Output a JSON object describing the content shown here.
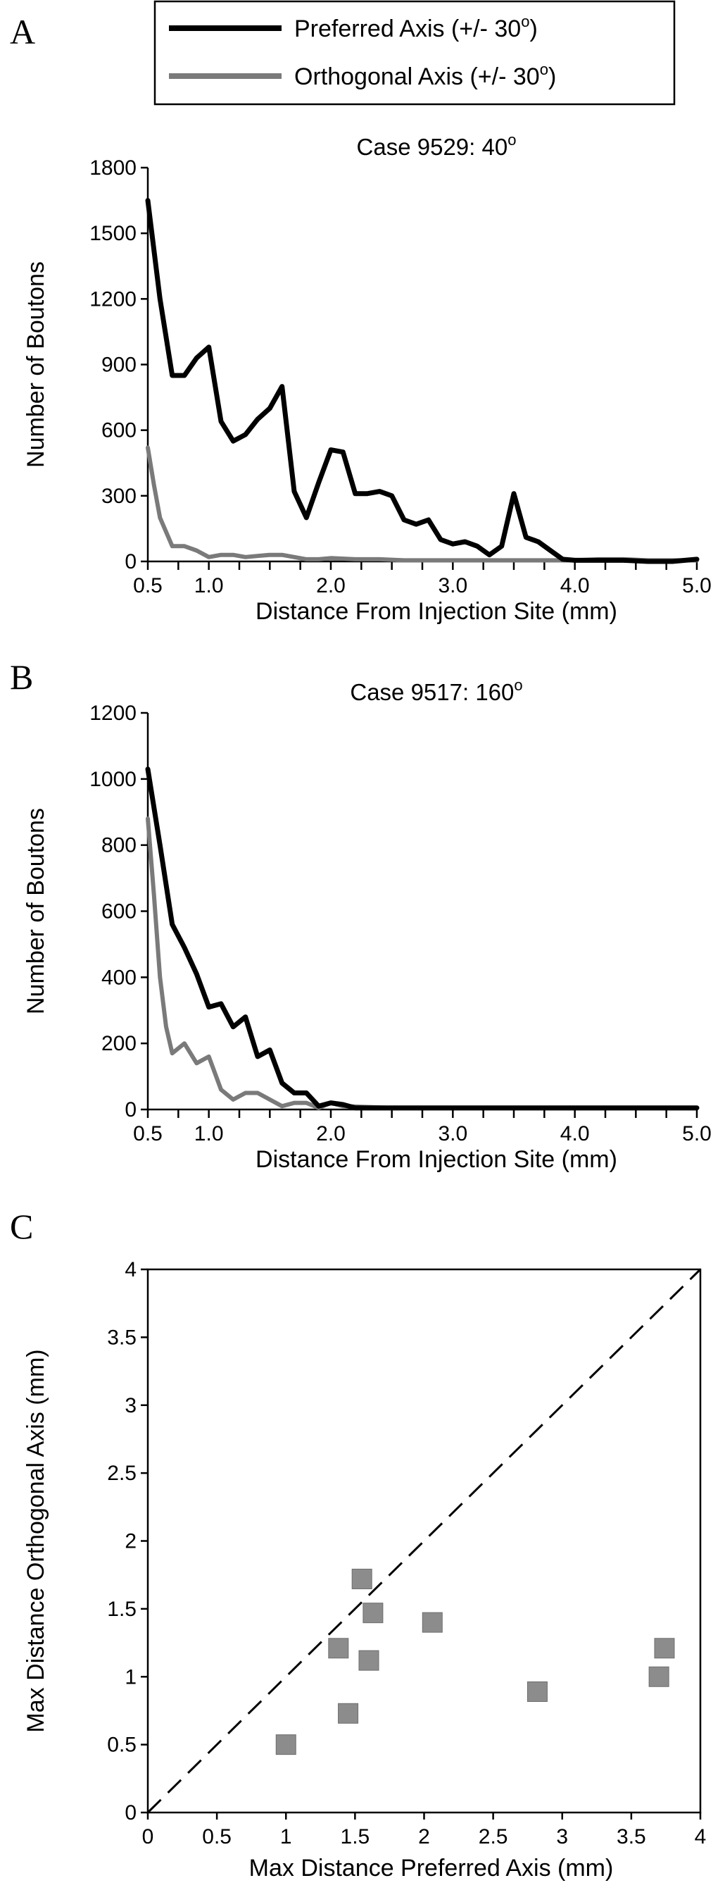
{
  "legend": {
    "entries": [
      {
        "name": "Preferred Axis (+/- 30",
        "sup": "o",
        "close": ")",
        "color": "#000000"
      },
      {
        "name": "Orthogonal Axis (+/- 30",
        "sup": "o",
        "close": ")",
        "color": "#7a7a7a"
      }
    ]
  },
  "chart_data": [
    {
      "panel": "A",
      "type": "line",
      "title": "Case 9529: 40",
      "title_sup": "o",
      "xlabel": "Distance From Injection Site (mm)",
      "ylabel": "Number of Boutons",
      "xlim": [
        0.5,
        5.0
      ],
      "ylim": [
        0,
        1800
      ],
      "x_ticks": [
        {
          "v": 0.5,
          "label": "0.5"
        },
        {
          "v": 1.0,
          "label": "1.0"
        },
        {
          "v": 2.0,
          "label": "2.0"
        },
        {
          "v": 3.0,
          "label": "3.0"
        },
        {
          "v": 4.0,
          "label": "4.0"
        },
        {
          "v": 5.0,
          "label": "5.0"
        }
      ],
      "x_minor": [
        0.5,
        0.75,
        1.0,
        1.25,
        1.5,
        1.75,
        2.0,
        2.25,
        2.5,
        2.75,
        3.0,
        3.25,
        3.5,
        3.75,
        4.0,
        4.25,
        4.5,
        4.75,
        5.0
      ],
      "y_ticks": [
        {
          "v": 0,
          "label": "0"
        },
        {
          "v": 300,
          "label": "300"
        },
        {
          "v": 600,
          "label": "600"
        },
        {
          "v": 900,
          "label": "900"
        },
        {
          "v": 1200,
          "label": "1200"
        },
        {
          "v": 1500,
          "label": "1500"
        },
        {
          "v": 1800,
          "label": "1800"
        }
      ],
      "series": [
        {
          "name": "Preferred Axis (+/- 30o)",
          "color": "#000000",
          "x": [
            0.5,
            0.6,
            0.7,
            0.8,
            0.9,
            1.0,
            1.1,
            1.2,
            1.3,
            1.4,
            1.5,
            1.6,
            1.7,
            1.8,
            1.9,
            2.0,
            2.1,
            2.2,
            2.3,
            2.4,
            2.5,
            2.6,
            2.7,
            2.8,
            2.9,
            3.0,
            3.1,
            3.2,
            3.3,
            3.4,
            3.5,
            3.6,
            3.7,
            3.8,
            3.9,
            4.0,
            4.2,
            4.4,
            4.6,
            4.8,
            5.0
          ],
          "y": [
            1650,
            1200,
            850,
            850,
            930,
            980,
            640,
            550,
            580,
            650,
            700,
            800,
            320,
            200,
            360,
            510,
            500,
            310,
            310,
            320,
            300,
            190,
            170,
            190,
            100,
            80,
            90,
            70,
            30,
            70,
            310,
            110,
            90,
            50,
            10,
            5,
            5,
            5,
            0,
            0,
            10
          ]
        },
        {
          "name": "Orthogonal Axis (+/- 30o)",
          "color": "#7a7a7a",
          "x": [
            0.5,
            0.55,
            0.6,
            0.7,
            0.8,
            0.9,
            1.0,
            1.1,
            1.2,
            1.3,
            1.4,
            1.5,
            1.6,
            1.7,
            1.8,
            1.9,
            2.0,
            2.2,
            2.4,
            2.6,
            2.8,
            3.0,
            3.5,
            4.0,
            4.2,
            4.4,
            4.6,
            4.8,
            5.0
          ],
          "y": [
            520,
            350,
            200,
            70,
            70,
            50,
            20,
            30,
            30,
            20,
            25,
            30,
            30,
            20,
            10,
            10,
            15,
            10,
            10,
            5,
            5,
            5,
            5,
            5,
            10,
            10,
            5,
            5,
            5
          ]
        }
      ]
    },
    {
      "panel": "B",
      "type": "line",
      "title": "Case 9517: 160",
      "title_sup": "o",
      "xlabel": "Distance From Injection Site (mm)",
      "ylabel": "Number of Boutons",
      "xlim": [
        0.5,
        5.0
      ],
      "ylim": [
        0,
        1200
      ],
      "x_ticks": [
        {
          "v": 0.5,
          "label": "0.5"
        },
        {
          "v": 1.0,
          "label": "1.0"
        },
        {
          "v": 2.0,
          "label": "2.0"
        },
        {
          "v": 3.0,
          "label": "3.0"
        },
        {
          "v": 4.0,
          "label": "4.0"
        },
        {
          "v": 5.0,
          "label": "5.0"
        }
      ],
      "x_minor": [
        0.5,
        0.75,
        1.0,
        1.25,
        1.5,
        1.75,
        2.0,
        2.25,
        2.5,
        2.75,
        3.0,
        3.25,
        3.5,
        3.75,
        4.0,
        4.25,
        4.5,
        4.75,
        5.0
      ],
      "y_ticks": [
        {
          "v": 0,
          "label": "0"
        },
        {
          "v": 200,
          "label": "200"
        },
        {
          "v": 400,
          "label": "400"
        },
        {
          "v": 600,
          "label": "600"
        },
        {
          "v": 800,
          "label": "800"
        },
        {
          "v": 1000,
          "label": "1000"
        },
        {
          "v": 1200,
          "label": "1200"
        }
      ],
      "series": [
        {
          "name": "Preferred Axis (+/- 30o)",
          "color": "#000000",
          "x": [
            0.5,
            0.6,
            0.7,
            0.8,
            0.9,
            1.0,
            1.1,
            1.2,
            1.3,
            1.4,
            1.5,
            1.6,
            1.7,
            1.8,
            1.9,
            2.0,
            2.1,
            2.2,
            2.5,
            3.0,
            3.5,
            4.0,
            4.5,
            5.0
          ],
          "y": [
            1030,
            800,
            560,
            490,
            410,
            310,
            320,
            250,
            280,
            160,
            180,
            80,
            50,
            50,
            10,
            20,
            15,
            5,
            5,
            5,
            5,
            5,
            5,
            5
          ]
        },
        {
          "name": "Orthogonal Axis (+/- 30o)",
          "color": "#7a7a7a",
          "x": [
            0.5,
            0.55,
            0.6,
            0.65,
            0.7,
            0.8,
            0.9,
            1.0,
            1.1,
            1.2,
            1.3,
            1.4,
            1.5,
            1.6,
            1.7,
            1.8,
            1.9,
            2.0,
            2.1,
            2.5,
            3.0,
            3.5,
            4.0,
            4.5,
            5.0
          ],
          "y": [
            880,
            650,
            400,
            250,
            170,
            200,
            140,
            160,
            60,
            30,
            50,
            50,
            30,
            10,
            20,
            20,
            5,
            20,
            10,
            5,
            5,
            5,
            5,
            5,
            5
          ]
        }
      ]
    },
    {
      "panel": "C",
      "type": "scatter",
      "xlabel": "Max Distance Preferred Axis (mm)",
      "ylabel": "Max Distance Orthogonal Axis (mm)",
      "xlim": [
        0,
        4
      ],
      "ylim": [
        0,
        4
      ],
      "x_ticks": [
        {
          "v": 0,
          "label": "0"
        },
        {
          "v": 0.5,
          "label": "0.5"
        },
        {
          "v": 1,
          "label": "1"
        },
        {
          "v": 1.5,
          "label": "1.5"
        },
        {
          "v": 2,
          "label": "2"
        },
        {
          "v": 2.5,
          "label": "2.5"
        },
        {
          "v": 3,
          "label": "3"
        },
        {
          "v": 3.5,
          "label": "3.5"
        },
        {
          "v": 4,
          "label": "4"
        }
      ],
      "y_ticks": [
        {
          "v": 0,
          "label": "0"
        },
        {
          "v": 0.5,
          "label": "0.5"
        },
        {
          "v": 1,
          "label": "1"
        },
        {
          "v": 1.5,
          "label": "1.5"
        },
        {
          "v": 2,
          "label": "2"
        },
        {
          "v": 2.5,
          "label": "2.5"
        },
        {
          "v": 3,
          "label": "3"
        },
        {
          "v": 3.5,
          "label": "3.5"
        },
        {
          "v": 4,
          "label": "4"
        }
      ],
      "reference_line": {
        "from": [
          0,
          0
        ],
        "to": [
          4,
          4
        ],
        "style": "dashed"
      },
      "marker_color": "#8c8c8c",
      "points": [
        {
          "x": 1.0,
          "y": 0.5
        },
        {
          "x": 1.38,
          "y": 1.21
        },
        {
          "x": 1.45,
          "y": 0.73
        },
        {
          "x": 1.55,
          "y": 1.72
        },
        {
          "x": 1.6,
          "y": 1.12
        },
        {
          "x": 1.63,
          "y": 1.47
        },
        {
          "x": 2.06,
          "y": 1.4
        },
        {
          "x": 2.82,
          "y": 0.89
        },
        {
          "x": 3.7,
          "y": 1.0
        },
        {
          "x": 3.74,
          "y": 1.21
        }
      ]
    }
  ],
  "panel_labels": [
    "A",
    "B",
    "C"
  ]
}
